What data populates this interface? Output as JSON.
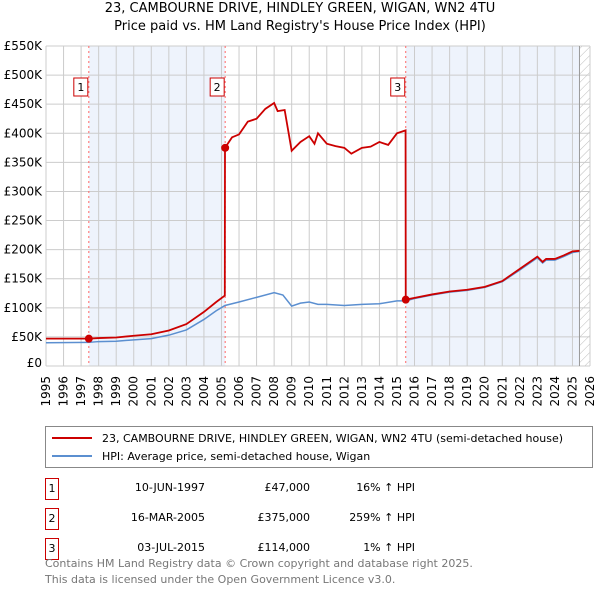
{
  "chart_data": {
    "type": "line",
    "title": "23, CAMBOURNE DRIVE, HINDLEY GREEN, WIGAN, WN2 4TU",
    "subtitle": "Price paid vs. HM Land Registry's House Price Index (HPI)",
    "xlim": [
      1995,
      2026
    ],
    "ylim": [
      0,
      550000
    ],
    "x_ticks": [
      "1995",
      "1996",
      "1997",
      "1998",
      "1999",
      "2000",
      "2001",
      "2002",
      "2003",
      "2004",
      "2005",
      "2006",
      "2007",
      "2008",
      "2009",
      "2010",
      "2011",
      "2012",
      "2013",
      "2014",
      "2015",
      "2016",
      "2017",
      "2018",
      "2019",
      "2020",
      "2021",
      "2022",
      "2023",
      "2024",
      "2025",
      "2026"
    ],
    "y_ticks": [
      "£0",
      "£50K",
      "£100K",
      "£150K",
      "£200K",
      "£250K",
      "£300K",
      "£350K",
      "£400K",
      "£450K",
      "£500K",
      "£550K"
    ],
    "grid": true,
    "series": [
      {
        "name": "23, CAMBOURNE DRIVE, HINDLEY GREEN, WIGAN, WN2 4TU (semi-detached house)",
        "color": "#cc0000",
        "x": [
          1995,
          1997.44,
          1998,
          1999,
          2000,
          2001,
          2002,
          2003,
          2004,
          2004.7,
          2005.19,
          2005.2,
          2005.6,
          2006,
          2006.5,
          2007,
          2007.5,
          2008,
          2008.2,
          2008.6,
          2009,
          2009.5,
          2010,
          2010.3,
          2010.5,
          2011,
          2011.5,
          2012,
          2012.4,
          2013,
          2013.5,
          2014,
          2014.5,
          2015,
          2015.3,
          2015.49,
          2015.5,
          2016,
          2017,
          2018,
          2019,
          2020,
          2021,
          2022,
          2023,
          2023.3,
          2023.5,
          2024,
          2024.5,
          2025,
          2025.4
        ],
        "y": [
          47000,
          47000,
          48000,
          49000,
          52000,
          54500,
          61000,
          72000,
          93000,
          110000,
          121000,
          375000,
          393000,
          398000,
          420000,
          425000,
          442000,
          452000,
          438000,
          440000,
          370000,
          385000,
          395000,
          382000,
          400000,
          382000,
          378000,
          375000,
          365000,
          375000,
          377000,
          385000,
          380000,
          400000,
          403000,
          405000,
          114000,
          117000,
          123000,
          128000,
          131000,
          136000,
          146000,
          167000,
          188000,
          179000,
          184000,
          184000,
          190000,
          197000,
          198000
        ]
      },
      {
        "name": "HPI: Average price, semi-detached house, Wigan",
        "color": "#5b8fd0",
        "x": [
          1995,
          1997.4,
          1998,
          1999,
          2000,
          2001,
          2002,
          2003,
          2004,
          2004.7,
          2005.2,
          2006,
          2007,
          2008,
          2008.5,
          2009,
          2009.5,
          2010,
          2010.5,
          2011,
          2012,
          2013,
          2014,
          2015,
          2015.5,
          2016,
          2017,
          2018,
          2019,
          2020,
          2021,
          2022,
          2023,
          2023.3,
          2023.5,
          2024,
          2024.5,
          2025,
          2025.4
        ],
        "y": [
          40000,
          40500,
          42000,
          42500,
          45000,
          47000,
          53000,
          62000,
          80000,
          95000,
          104000,
          110000,
          118000,
          126000,
          122000,
          103000,
          108000,
          110000,
          106000,
          106000,
          104000,
          106000,
          107000,
          112000,
          112000,
          116000,
          122000,
          127000,
          130000,
          135000,
          145000,
          165000,
          186000,
          177000,
          182000,
          182000,
          188000,
          195000,
          197000
        ]
      }
    ],
    "sales": [
      {
        "label": "1",
        "x": 1997.44,
        "price": 47000,
        "date": "10-JUN-1997",
        "price_text": "£47,000",
        "hpi": "16% ↑ HPI"
      },
      {
        "label": "2",
        "x": 2005.21,
        "price": 375000,
        "date": "16-MAR-2005",
        "price_text": "£375,000",
        "hpi": "259% ↑ HPI"
      },
      {
        "label": "3",
        "x": 2015.5,
        "price": 114000,
        "date": "03-JUL-2015",
        "price_text": "£114,000",
        "hpi": "1% ↑ HPI"
      }
    ],
    "shaded": [
      [
        1997.44,
        2005.21
      ],
      [
        2015.5,
        2025.4
      ]
    ],
    "forecast_start": 2025.4,
    "legend_position": "below"
  },
  "footer": [
    "Contains HM Land Registry data © Crown copyright and database right 2025.",
    "This data is licensed under the Open Government Licence v3.0."
  ]
}
